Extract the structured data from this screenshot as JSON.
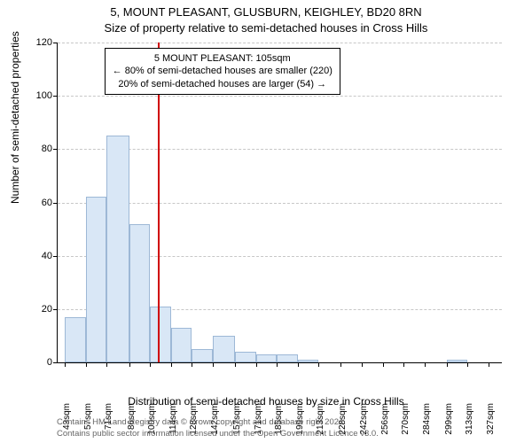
{
  "titles": {
    "main": "5, MOUNT PLEASANT, GLUSBURN, KEIGHLEY, BD20 8RN",
    "sub": "Size of property relative to semi-detached houses in Cross Hills"
  },
  "axes": {
    "y_label": "Number of semi-detached properties",
    "x_label": "Distribution of semi-detached houses by size in Cross Hills"
  },
  "chart": {
    "type": "histogram",
    "ylim": [
      0,
      120
    ],
    "ytick_step": 20,
    "y_ticks": [
      0,
      20,
      40,
      60,
      80,
      100,
      120
    ],
    "x_tick_labels": [
      "43sqm",
      "57sqm",
      "71sqm",
      "86sqm",
      "100sqm",
      "114sqm",
      "128sqm",
      "142sqm",
      "157sqm",
      "171sqm",
      "185sqm",
      "199sqm",
      "213sqm",
      "228sqm",
      "242sqm",
      "256sqm",
      "270sqm",
      "284sqm",
      "299sqm",
      "313sqm",
      "327sqm"
    ],
    "x_tick_positions": [
      43,
      57,
      71,
      86,
      100,
      114,
      128,
      142,
      157,
      171,
      185,
      199,
      213,
      228,
      242,
      256,
      270,
      284,
      299,
      313,
      327
    ],
    "x_range": [
      38,
      336
    ],
    "bars": [
      {
        "x": 43,
        "w": 14,
        "h": 17
      },
      {
        "x": 57,
        "w": 14,
        "h": 62
      },
      {
        "x": 71,
        "w": 15,
        "h": 85
      },
      {
        "x": 86,
        "w": 14,
        "h": 52
      },
      {
        "x": 100,
        "w": 14,
        "h": 21
      },
      {
        "x": 114,
        "w": 14,
        "h": 13
      },
      {
        "x": 128,
        "w": 14,
        "h": 5
      },
      {
        "x": 142,
        "w": 15,
        "h": 10
      },
      {
        "x": 157,
        "w": 14,
        "h": 4
      },
      {
        "x": 171,
        "w": 14,
        "h": 3
      },
      {
        "x": 185,
        "w": 14,
        "h": 3
      },
      {
        "x": 199,
        "w": 14,
        "h": 1
      },
      {
        "x": 213,
        "w": 15,
        "h": 0
      },
      {
        "x": 228,
        "w": 14,
        "h": 0
      },
      {
        "x": 242,
        "w": 14,
        "h": 0
      },
      {
        "x": 256,
        "w": 14,
        "h": 0
      },
      {
        "x": 270,
        "w": 14,
        "h": 0
      },
      {
        "x": 284,
        "w": 15,
        "h": 0
      },
      {
        "x": 299,
        "w": 14,
        "h": 1
      },
      {
        "x": 313,
        "w": 14,
        "h": 0
      },
      {
        "x": 327,
        "w": 9,
        "h": 0
      }
    ],
    "reference_line_x": 105,
    "bar_fill": "#d9e7f6",
    "bar_border": "#9db8d6",
    "grid_color": "#c7c7c7",
    "ref_line_color": "#d00000",
    "background_color": "#ffffff"
  },
  "info_box": {
    "line1": "5 MOUNT PLEASANT: 105sqm",
    "line2": "← 80% of semi-detached houses are smaller (220)",
    "line3": "20% of semi-detached houses are larger (54) →"
  },
  "attribution": {
    "line1": "Contains HM Land Registry data © Crown copyright and database right 2024.",
    "line2": "Contains public sector information licensed under the Open Government Licence v3.0."
  }
}
